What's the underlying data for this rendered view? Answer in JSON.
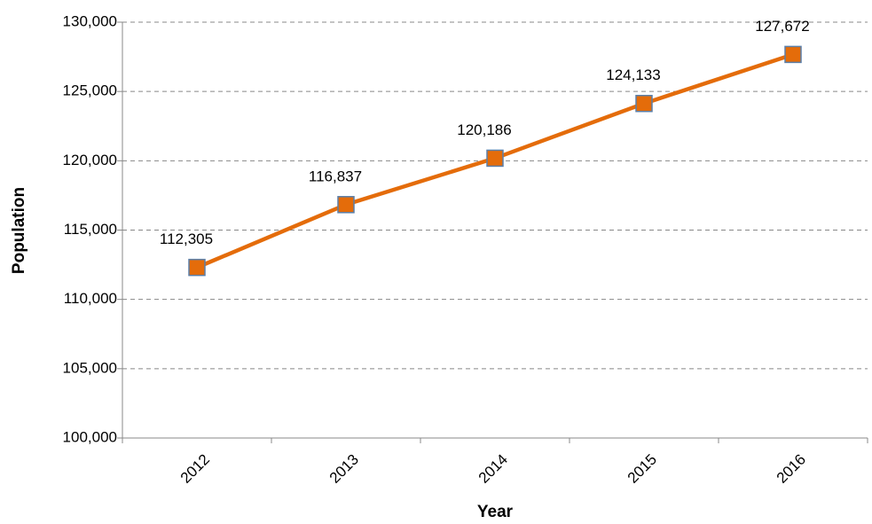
{
  "chart_data": {
    "type": "line",
    "x_label": "Year",
    "y_label": "Population",
    "categories": [
      "2012",
      "2013",
      "2014",
      "2015",
      "2016"
    ],
    "values": [
      112305,
      116837,
      120186,
      124133,
      127672
    ],
    "value_labels": [
      "112,305",
      "116,837",
      "120,186",
      "124,133",
      "127,672"
    ],
    "color": "#e46c0a",
    "marker_edge_color": "#5b7fa8",
    "ylim": [
      100000,
      130000
    ],
    "yticks": [
      {
        "value": 100000,
        "label": "100,000"
      },
      {
        "value": 105000,
        "label": "105,000"
      },
      {
        "value": 110000,
        "label": "110,000"
      },
      {
        "value": 115000,
        "label": "115,000"
      },
      {
        "value": 120000,
        "label": "120,000"
      },
      {
        "value": 125000,
        "label": "125,000"
      },
      {
        "value": 130000,
        "label": "130,000"
      }
    ],
    "grid": true
  }
}
